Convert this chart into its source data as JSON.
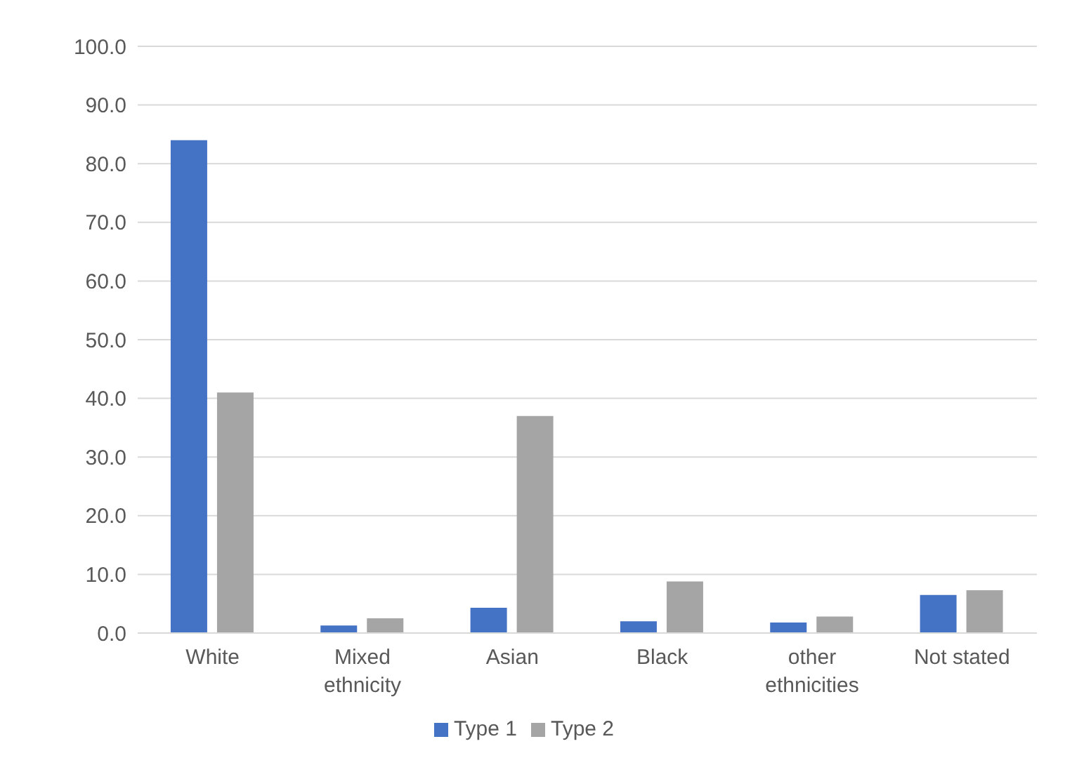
{
  "chart_data": {
    "type": "bar",
    "categories": [
      "White",
      "Mixed ethnicity",
      "Asian",
      "Black",
      "other ethnicities",
      "Not stated"
    ],
    "series": [
      {
        "name": "Type 1",
        "color": "#4472c4",
        "values": [
          84.0,
          1.3,
          4.3,
          2.0,
          1.8,
          6.5
        ]
      },
      {
        "name": "Type 2",
        "color": "#a5a5a5",
        "values": [
          41.0,
          2.5,
          37.0,
          8.8,
          2.8,
          7.3
        ]
      }
    ],
    "ylim": [
      0,
      100
    ],
    "yticks": [
      {
        "value": 0,
        "label": "0.0"
      },
      {
        "value": 10,
        "label": "10.0"
      },
      {
        "value": 20,
        "label": "20.0"
      },
      {
        "value": 30,
        "label": "30.0"
      },
      {
        "value": 40,
        "label": "40.0"
      },
      {
        "value": 50,
        "label": "50.0"
      },
      {
        "value": 60,
        "label": "60.0"
      },
      {
        "value": 70,
        "label": "70.0"
      },
      {
        "value": 80,
        "label": "80.0"
      },
      {
        "value": 90,
        "label": "90.0"
      },
      {
        "value": 100,
        "label": "100.0"
      }
    ],
    "grid": "y",
    "legend": "bottom"
  }
}
